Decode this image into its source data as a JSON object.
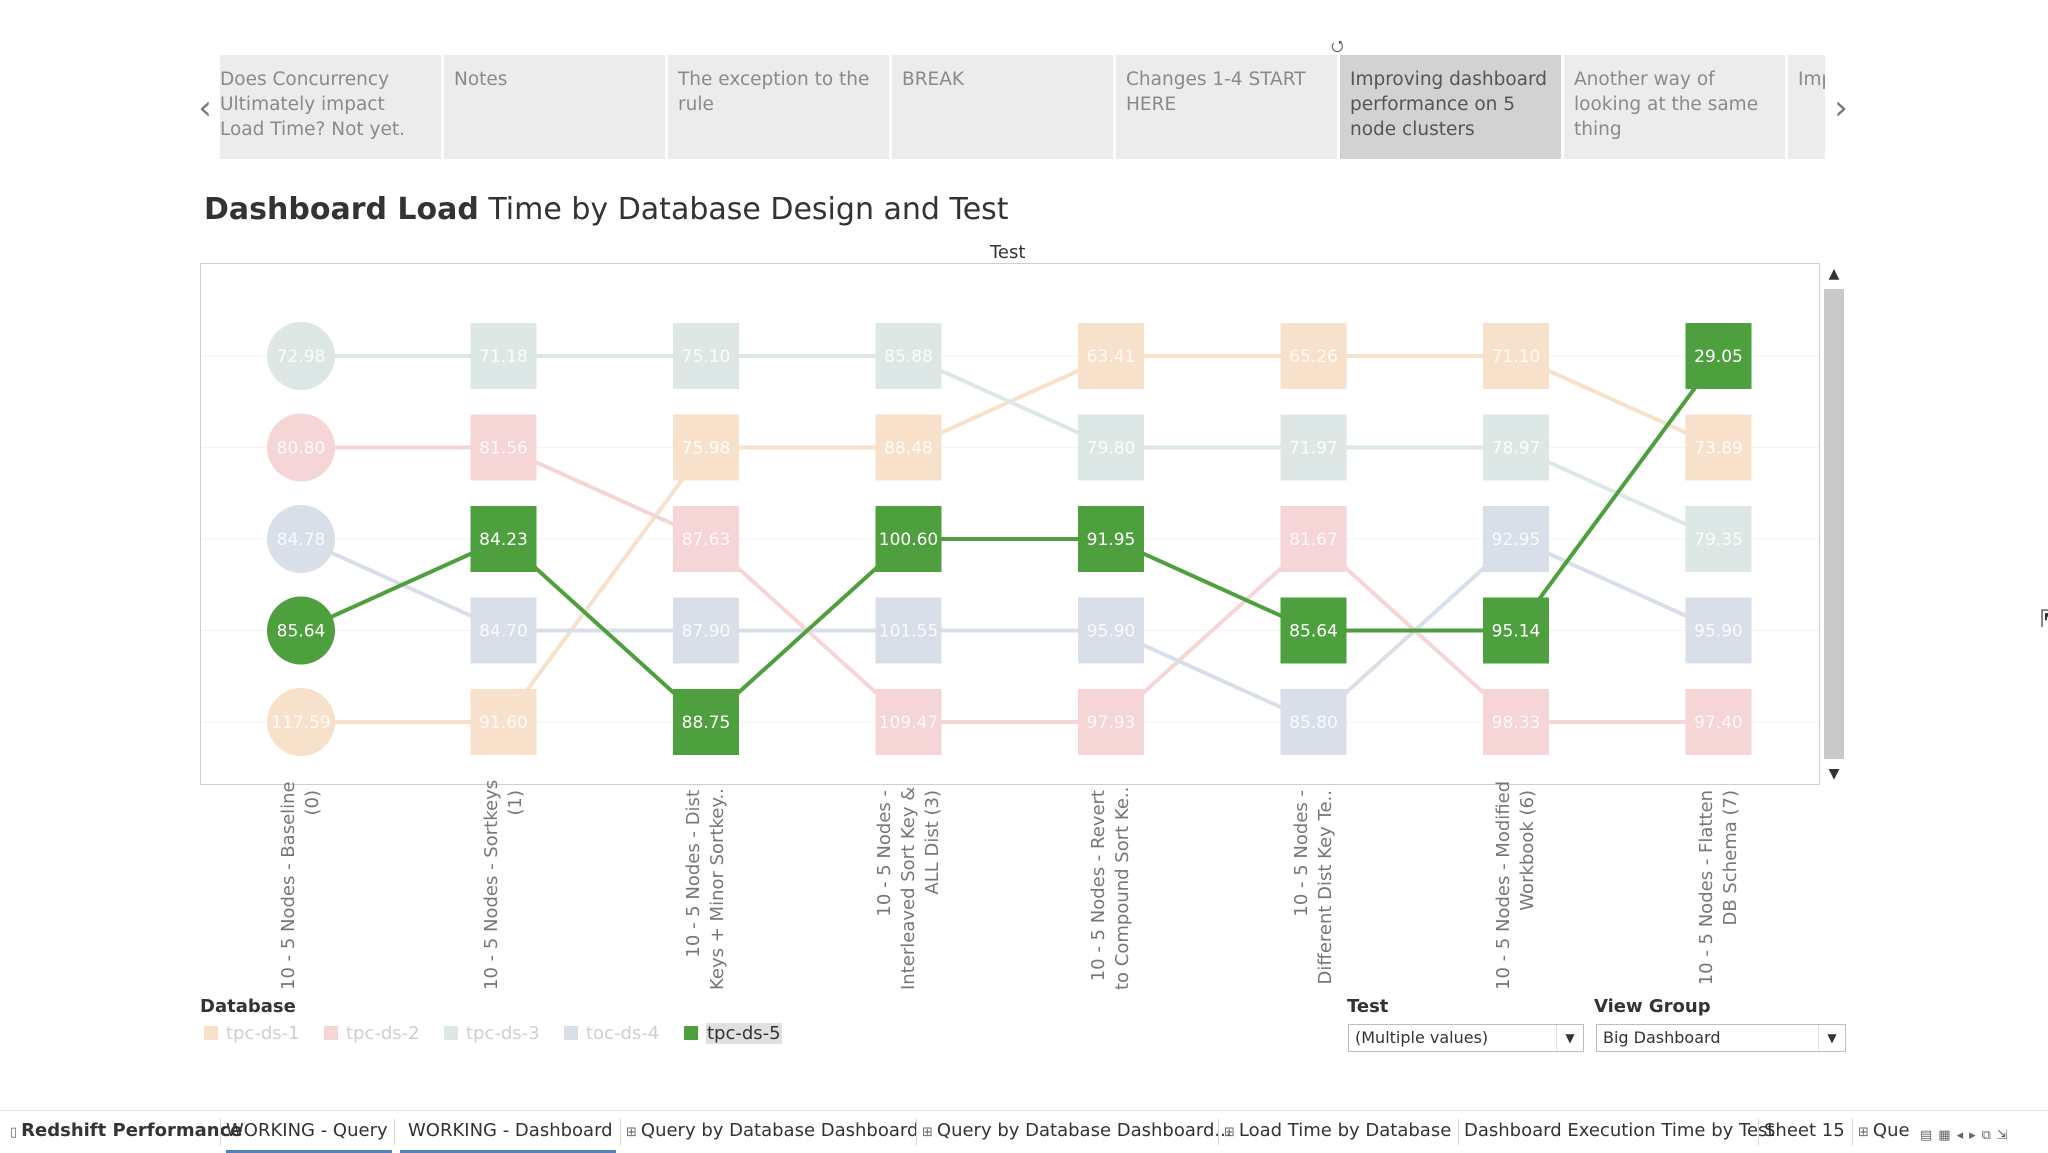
{
  "story": {
    "points": [
      "Does Concurrency Ultimately impact Load Time? Not yet.",
      "Notes",
      "The exception to the rule",
      "BREAK",
      "Changes 1-4 START HERE",
      "Improving dashboard performance on 5 node clusters",
      "Another way of looking at the same thing",
      "Imp exec"
    ],
    "active_index": 5,
    "prev_icon": "chevron-left-icon",
    "next_icon": "chevron-right-icon",
    "revert_icon": "revert-icon"
  },
  "title": {
    "bold": "Dashboard Load",
    "rest": "Time by Database Design and Test"
  },
  "chart_data": {
    "type": "bump",
    "axis_title": "Test",
    "columns": [
      "10 - 5 Nodes - Baseline (0)",
      "10 - 5 Nodes - Sortkeys (1)",
      "10 - 5 Nodes - Dist Keys + Minor Sortkey..",
      "10 - 5 Nodes - Interleaved Sort Key & ALL Dist (3)",
      "10 - 5 Nodes - Revert to Compound Sort Ke..",
      "10 - 5 Nodes - Different Dist Key Te..",
      "10 - 5 Nodes - Modified Workbook (6)",
      "10 - 5 Nodes - Flatten DB Schema (7)"
    ],
    "column_labels": [
      [
        "10 - 5 Nodes - Baseline",
        "(0)"
      ],
      [
        "10 - 5 Nodes - Sortkeys",
        "(1)"
      ],
      [
        "10 - 5 Nodes - Dist",
        "Keys + Minor Sortkey.."
      ],
      [
        "10 - 5 Nodes -",
        "Interleaved Sort Key &",
        "ALL Dist (3)"
      ],
      [
        "10 - 5 Nodes - Revert",
        "to Compound Sort Ke.."
      ],
      [
        "10 - 5 Nodes -",
        "Different Dist Key Te.."
      ],
      [
        "10 - 5 Nodes - Modified",
        "Workbook (6)"
      ],
      [
        "10 - 5 Nodes - Flatten",
        "DB Schema (7)"
      ]
    ],
    "series": [
      {
        "name": "tpc-ds-1",
        "color": "#f1ce63",
        "values": [
          117.59,
          91.6,
          75.98,
          88.48,
          63.41,
          65.26,
          71.1,
          73.89
        ],
        "ranks": [
          5,
          5,
          2,
          2,
          1,
          1,
          1,
          2
        ]
      },
      {
        "name": "tpc-ds-2",
        "color": "#e15759",
        "values": [
          80.8,
          81.56,
          87.63,
          109.47,
          97.93,
          81.67,
          98.33,
          97.4
        ],
        "ranks": [
          2,
          2,
          3,
          5,
          5,
          3,
          5,
          5
        ]
      },
      {
        "name": "tpc-ds-3",
        "color": "#86bcb6",
        "values": [
          72.98,
          71.18,
          75.1,
          85.88,
          79.8,
          71.97,
          78.97,
          79.35
        ],
        "ranks": [
          1,
          1,
          1,
          1,
          2,
          2,
          2,
          3
        ]
      },
      {
        "name": "toc-ds-4",
        "color": "#9fb0c9",
        "values": [
          84.78,
          84.7,
          87.9,
          101.55,
          95.9,
          85.8,
          92.95,
          95.9
        ],
        "ranks": [
          3,
          4,
          4,
          4,
          4,
          5,
          3,
          4
        ]
      },
      {
        "name": "tpc-ds-5",
        "color": "#4e9f3d",
        "values": [
          85.64,
          84.23,
          88.75,
          100.6,
          91.95,
          85.64,
          95.14,
          29.05
        ],
        "ranks": [
          4,
          3,
          5,
          3,
          3,
          4,
          4,
          1
        ]
      }
    ],
    "highlighted_series": "tpc-ds-5",
    "fade_colors": {
      "tpc-ds-1": "#f7e1cb",
      "tpc-ds-2": "#f5d5d6",
      "tpc-ds-3": "#dde8e6",
      "toc-ds-4": "#d9dfe8"
    },
    "legend_title": "Database"
  },
  "filters": {
    "test": {
      "title": "Test",
      "value": "(Multiple values)"
    },
    "view_group": {
      "title": "View Group",
      "value": "Big Dashboard"
    }
  },
  "tabs": [
    {
      "label": "Redshift Performance",
      "icon": "story-icon"
    },
    {
      "label": "WORKING - Query",
      "icon": ""
    },
    {
      "label": "WORKING - Dashboard",
      "icon": ""
    },
    {
      "label": "Query by Database Dashboard",
      "icon": "dashboard-icon"
    },
    {
      "label": "Query by Database Dashboard...",
      "icon": "dashboard-icon"
    },
    {
      "label": "Load  Time by Database",
      "icon": "dashboard-icon"
    },
    {
      "label": "Dashboard Execution Time by Test",
      "icon": ""
    },
    {
      "label": "Sheet 15",
      "icon": ""
    },
    {
      "label": "Que",
      "icon": "dashboard-icon"
    }
  ]
}
